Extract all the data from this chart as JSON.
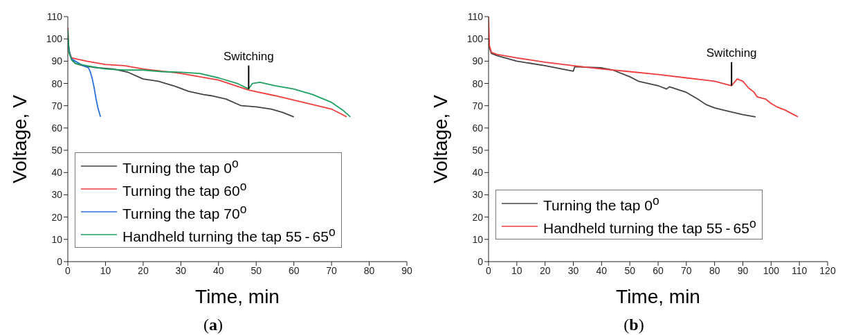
{
  "chart_data": [
    {
      "type": "line",
      "xlabel": "Time, min",
      "ylabel": "Voltage, V",
      "xlim": [
        0,
        90
      ],
      "xticks": [
        0,
        10,
        20,
        30,
        40,
        50,
        60,
        70,
        80,
        90
      ],
      "ylim": [
        0,
        110
      ],
      "yticks": [
        0,
        10,
        20,
        30,
        40,
        50,
        60,
        70,
        80,
        90,
        100,
        110
      ],
      "grid": false,
      "legend": "bottom left",
      "marker": "none",
      "line_style": "solid",
      "annotations": [
        {
          "text": "Switching",
          "x": 48,
          "y": 77.5
        },
        "(a)"
      ],
      "series": [
        {
          "name": "Turning the tap 0$^{o}$",
          "color": "#444444",
          "x": [
            0,
            0.3,
            1,
            2,
            4,
            8,
            12,
            16,
            20,
            24,
            28,
            32,
            36,
            38,
            42,
            46,
            50,
            54,
            57,
            60
          ],
          "values": [
            100,
            95,
            91,
            89,
            88,
            87,
            86.5,
            85,
            82,
            81,
            79,
            76.5,
            75,
            74.5,
            73,
            70,
            69.5,
            68.5,
            67,
            65
          ]
        },
        {
          "name": "Turning the tap 60$^{o}$",
          "color": "#f03c3c",
          "x": [
            0,
            0.3,
            1,
            5,
            10,
            15,
            20,
            30,
            40,
            48,
            55,
            60,
            65,
            70,
            74
          ],
          "values": [
            105,
            94,
            91.5,
            90,
            88.5,
            88,
            86.5,
            84.5,
            81.5,
            77,
            74.5,
            72.5,
            70.5,
            68.5,
            65
          ]
        },
        {
          "name": "Turning the tap 70$^{o}$",
          "color": "#2a6fdb",
          "x": [
            0,
            0.5,
            1,
            2,
            4,
            5.5,
            6,
            6.5,
            7,
            7.5,
            8,
            8.5,
            8.7
          ],
          "values": [
            100,
            93,
            91,
            90,
            88,
            87,
            85,
            82,
            78,
            73,
            69,
            66,
            65
          ]
        },
        {
          "name": "Handheld turning the tap 55 - 65$^{o}$",
          "color": "#1fa060",
          "x": [
            0,
            0.3,
            1,
            2,
            5,
            10,
            15,
            20,
            25,
            30,
            35,
            40,
            45,
            48,
            49,
            51,
            55,
            60,
            65,
            70,
            73,
            75
          ],
          "values": [
            104,
            94,
            90.5,
            89,
            88,
            86.5,
            86,
            86,
            85.3,
            85,
            84.5,
            82.5,
            80,
            77.5,
            80,
            80.5,
            79,
            77.5,
            75,
            71.5,
            68,
            65
          ]
        }
      ]
    },
    {
      "type": "line",
      "xlabel": "Time, min",
      "ylabel": "Voltage, V",
      "xlim": [
        0,
        120
      ],
      "xticks": [
        0,
        10,
        20,
        30,
        40,
        50,
        60,
        70,
        80,
        90,
        100,
        110,
        120
      ],
      "ylim": [
        0,
        110
      ],
      "yticks": [
        0,
        10,
        20,
        30,
        40,
        50,
        60,
        70,
        80,
        90,
        100,
        110
      ],
      "grid": false,
      "legend": "bottom left",
      "marker": "none",
      "line_style": "solid",
      "annotations": [
        {
          "text": "Switching",
          "x": 86,
          "y": 79
        },
        "(b)"
      ],
      "series": [
        {
          "name": "Turning the tap 0$^{o}$",
          "color": "#444444",
          "x": [
            0,
            0.3,
            1,
            3,
            10,
            20,
            30,
            30.5,
            40,
            44,
            50,
            53,
            60,
            63,
            64,
            70,
            74,
            77,
            80,
            85,
            90,
            94.5
          ],
          "values": [
            100,
            96,
            93.5,
            92.5,
            90,
            88,
            85.5,
            87.5,
            87,
            86,
            83,
            81,
            79,
            77.5,
            78.5,
            76,
            73,
            70.5,
            69,
            67.5,
            66,
            65
          ]
        },
        {
          "name": "Handheld turning the tap 55 - 65$^{o}$",
          "color": "#f03c3c",
          "x": [
            0,
            0.3,
            1,
            3,
            10,
            20,
            30,
            40,
            50,
            60,
            70,
            80,
            86,
            88,
            90,
            92,
            94,
            95,
            98,
            100,
            102,
            105,
            108,
            109.5
          ],
          "values": [
            110,
            97,
            94,
            93,
            91.5,
            89.5,
            88,
            86.5,
            85.3,
            84,
            82.5,
            81,
            79,
            82,
            81,
            78,
            76,
            74,
            73,
            71,
            69.5,
            68,
            66,
            65
          ]
        }
      ]
    }
  ]
}
